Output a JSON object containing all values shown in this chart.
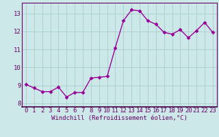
{
  "x": [
    0,
    1,
    2,
    3,
    4,
    5,
    6,
    7,
    8,
    9,
    10,
    11,
    12,
    13,
    14,
    15,
    16,
    17,
    18,
    19,
    20,
    21,
    22,
    23
  ],
  "y": [
    9.05,
    8.85,
    8.65,
    8.65,
    8.9,
    8.35,
    8.6,
    8.6,
    9.4,
    9.45,
    9.5,
    11.1,
    12.6,
    13.2,
    13.15,
    12.6,
    12.4,
    11.95,
    11.85,
    12.1,
    11.65,
    12.05,
    12.5,
    11.95
  ],
  "line_color": "#990099",
  "marker": "D",
  "markersize": 2.5,
  "linewidth": 1.0,
  "bg_color": "#cce8e8",
  "grid_color": "#aacccc",
  "xlabel": "Windchill (Refroidissement éolien,°C)",
  "xlabel_color": "#660066",
  "tick_color": "#660066",
  "xlim": [
    -0.5,
    23.5
  ],
  "ylim": [
    7.8,
    13.6
  ],
  "yticks": [
    8,
    9,
    10,
    11,
    12,
    13
  ],
  "xticks": [
    0,
    1,
    2,
    3,
    4,
    5,
    6,
    7,
    8,
    9,
    10,
    11,
    12,
    13,
    14,
    15,
    16,
    17,
    18,
    19,
    20,
    21,
    22,
    23
  ],
  "xlabel_fontsize": 6.5,
  "tick_fontsize": 6.5,
  "spine_color": "#660066"
}
